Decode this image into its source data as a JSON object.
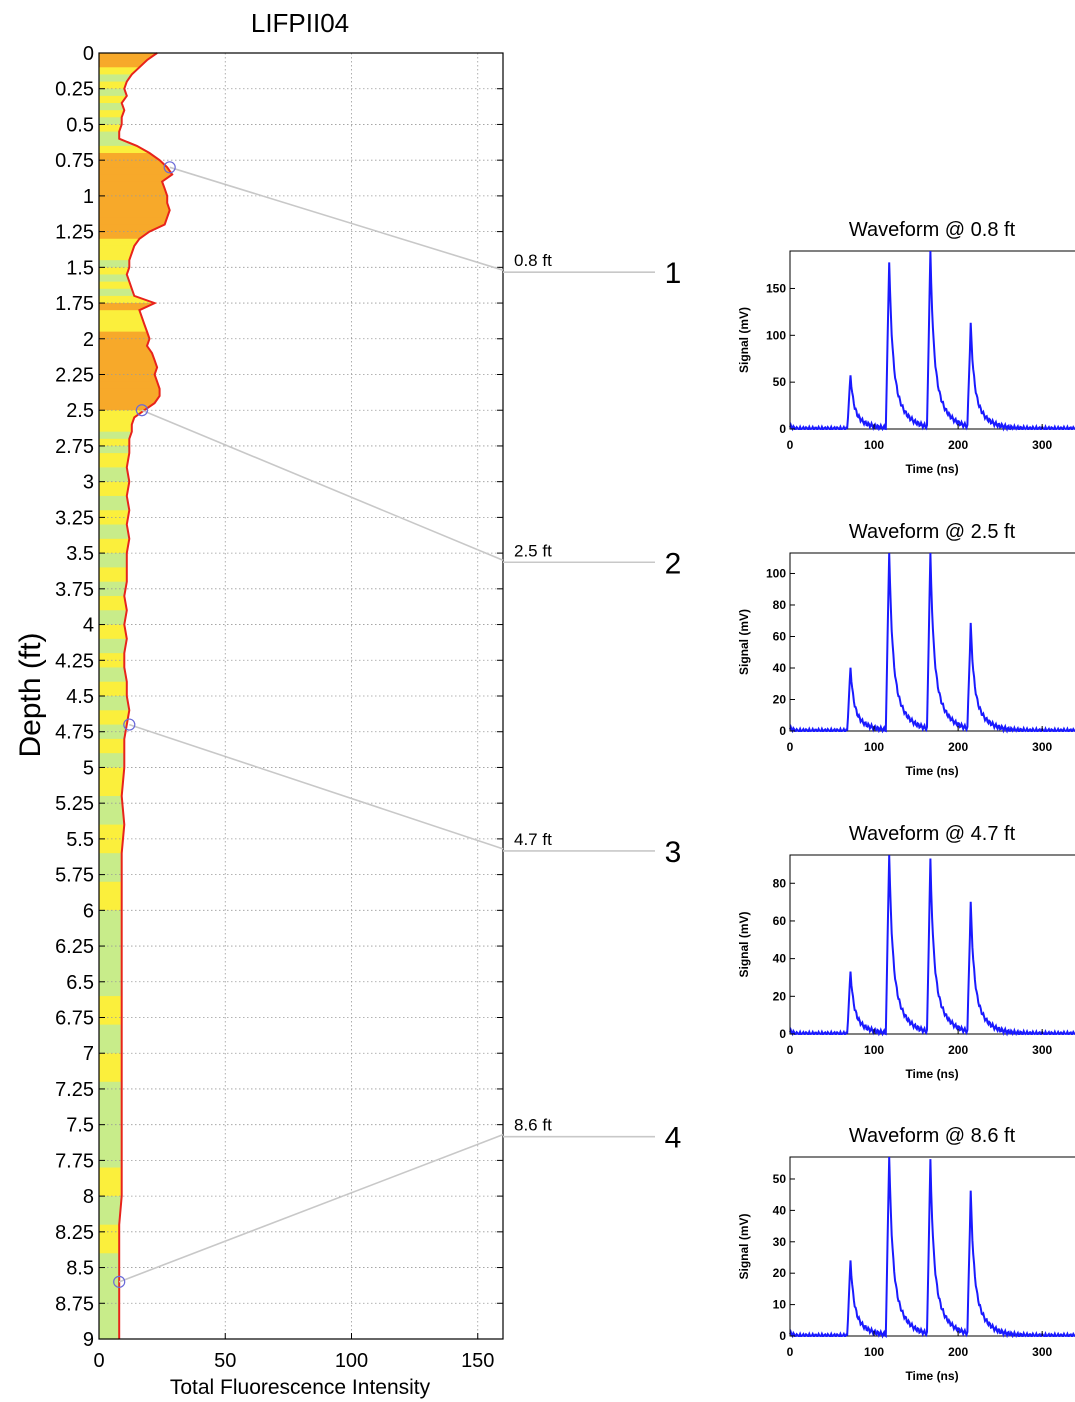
{
  "chart_data": [
    {
      "type": "area",
      "title": "LIFPII04",
      "xlabel": "Total Fluorescence Intensity",
      "ylabel": "Depth (ft)",
      "xlim": [
        0,
        160
      ],
      "ylim": [
        0,
        9
      ],
      "x_ticks": [
        "0",
        "50",
        "100",
        "150"
      ],
      "y_ticks": [
        "0",
        "0.25",
        "0.5",
        "0.75",
        "1",
        "1.25",
        "1.5",
        "1.75",
        "2",
        "2.25",
        "2.5",
        "2.75",
        "3",
        "3.25",
        "3.5",
        "3.75",
        "4",
        "4.25",
        "4.5",
        "4.75",
        "5",
        "5.25",
        "5.5",
        "5.75",
        "6",
        "6.25",
        "6.5",
        "6.75",
        "7",
        "7.25",
        "7.5",
        "7.75",
        "8",
        "8.25",
        "8.5",
        "8.75",
        "9"
      ],
      "y_inverted": true,
      "grid": true,
      "line_color": "#e8231b",
      "fill_colors": {
        "low": "#c8ec8a",
        "mid": "#fbef3c",
        "high": "#f7a92a"
      },
      "depth": [
        0.0,
        0.05,
        0.1,
        0.15,
        0.2,
        0.25,
        0.3,
        0.35,
        0.4,
        0.45,
        0.5,
        0.55,
        0.6,
        0.65,
        0.7,
        0.75,
        0.8,
        0.85,
        0.9,
        0.95,
        1.0,
        1.05,
        1.1,
        1.15,
        1.2,
        1.25,
        1.3,
        1.35,
        1.4,
        1.45,
        1.5,
        1.55,
        1.6,
        1.65,
        1.7,
        1.75,
        1.8,
        1.85,
        1.9,
        1.95,
        2.0,
        2.05,
        2.1,
        2.15,
        2.2,
        2.25,
        2.3,
        2.35,
        2.4,
        2.45,
        2.5,
        2.55,
        2.6,
        2.65,
        2.7,
        2.75,
        2.8,
        2.9,
        3.0,
        3.1,
        3.2,
        3.3,
        3.4,
        3.5,
        3.6,
        3.7,
        3.8,
        3.9,
        4.0,
        4.1,
        4.2,
        4.3,
        4.4,
        4.5,
        4.6,
        4.7,
        4.8,
        4.9,
        5.0,
        5.2,
        5.4,
        5.6,
        5.8,
        6.0,
        6.2,
        6.4,
        6.6,
        6.8,
        7.0,
        7.2,
        7.4,
        7.6,
        7.8,
        8.0,
        8.2,
        8.4,
        8.6,
        8.8,
        9.0
      ],
      "intensity": [
        23,
        19,
        16,
        13,
        11,
        10,
        11,
        9,
        10,
        9,
        9,
        8,
        8,
        15,
        20,
        24,
        27,
        29,
        25,
        26,
        27,
        27,
        28,
        27,
        26,
        20,
        16,
        14,
        13,
        12,
        12,
        11,
        12,
        13,
        14,
        22,
        16,
        17,
        18,
        19,
        20,
        19,
        21,
        22,
        23,
        22,
        23,
        24,
        24,
        22,
        18,
        14,
        13,
        13,
        12,
        12,
        12,
        11,
        12,
        11,
        12,
        11,
        12,
        11,
        11,
        11,
        10,
        11,
        10,
        11,
        10,
        10,
        11,
        11,
        12,
        11,
        10,
        10,
        10,
        9,
        10,
        9,
        9,
        9,
        9,
        9,
        9,
        9,
        9,
        9,
        9,
        9,
        9,
        9,
        8,
        8,
        8,
        8,
        8
      ],
      "markers": [
        {
          "depth": 0.8,
          "intensity": 28,
          "label": "0.8 ft",
          "index": "1"
        },
        {
          "depth": 2.5,
          "intensity": 17,
          "label": "2.5 ft",
          "index": "2"
        },
        {
          "depth": 4.7,
          "intensity": 12,
          "label": "4.7 ft",
          "index": "3"
        },
        {
          "depth": 8.6,
          "intensity": 8,
          "label": "8.6 ft",
          "index": "4"
        }
      ]
    },
    {
      "type": "line",
      "title": "Waveform @  0.8 ft",
      "xlabel": "Time (ns)",
      "ylabel": "Signal (mV)",
      "xlim": [
        0,
        345
      ],
      "ylim": [
        0,
        190
      ],
      "x_ticks": [
        0,
        100,
        200,
        300
      ],
      "y_ticks": [
        0,
        50,
        100,
        150
      ],
      "series_color": "#1a1aff",
      "peaks": [
        {
          "t": 72,
          "amp": 57
        },
        {
          "t": 118,
          "amp": 178
        },
        {
          "t": 167,
          "amp": 187
        },
        {
          "t": 215,
          "amp": 109
        }
      ]
    },
    {
      "type": "line",
      "title": "Waveform @  2.5 ft",
      "xlabel": "Time (ns)",
      "ylabel": "Signal (mV)",
      "xlim": [
        0,
        345
      ],
      "ylim": [
        0,
        113
      ],
      "x_ticks": [
        0,
        100,
        200,
        300
      ],
      "y_ticks": [
        0,
        20,
        40,
        60,
        80,
        100
      ],
      "series_color": "#1a1aff",
      "peaks": [
        {
          "t": 72,
          "amp": 40
        },
        {
          "t": 118,
          "amp": 113
        },
        {
          "t": 167,
          "amp": 112
        },
        {
          "t": 215,
          "amp": 66
        }
      ]
    },
    {
      "type": "line",
      "title": "Waveform @  4.7 ft",
      "xlabel": "Time (ns)",
      "ylabel": "Signal (mV)",
      "xlim": [
        0,
        345
      ],
      "ylim": [
        0,
        95
      ],
      "x_ticks": [
        0,
        100,
        200,
        300
      ],
      "y_ticks": [
        0,
        20,
        40,
        60,
        80
      ],
      "series_color": "#1a1aff",
      "peaks": [
        {
          "t": 72,
          "amp": 33
        },
        {
          "t": 118,
          "amp": 95
        },
        {
          "t": 167,
          "amp": 91
        },
        {
          "t": 215,
          "amp": 68
        }
      ]
    },
    {
      "type": "line",
      "title": "Waveform @  8.6 ft",
      "xlabel": "Time (ns)",
      "ylabel": "Signal (mV)",
      "xlim": [
        0,
        345
      ],
      "ylim": [
        0,
        57
      ],
      "x_ticks": [
        0,
        100,
        200,
        300
      ],
      "y_ticks": [
        0,
        10,
        20,
        30,
        40,
        50
      ],
      "series_color": "#1a1aff",
      "peaks": [
        {
          "t": 72,
          "amp": 24
        },
        {
          "t": 118,
          "amp": 57
        },
        {
          "t": 167,
          "amp": 55
        },
        {
          "t": 215,
          "amp": 45
        }
      ]
    }
  ]
}
